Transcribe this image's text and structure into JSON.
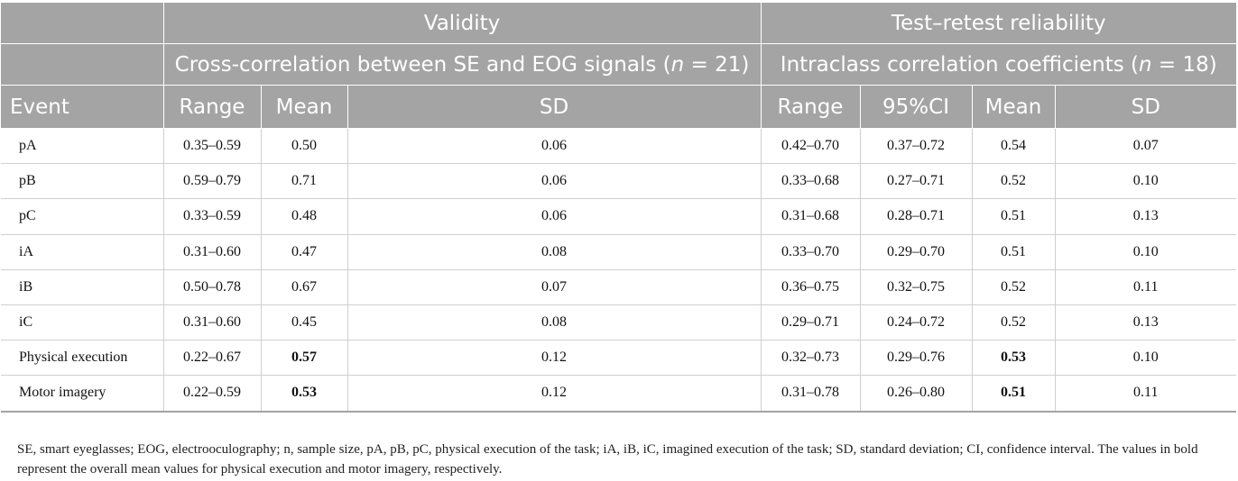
{
  "header": {
    "validity": "Validity",
    "reliability": "Test–retest reliability",
    "validity_sub_prefix": "Cross-correlation between SE and EOG signals (",
    "validity_sub_n": "n",
    "validity_sub_suffix": " = 21)",
    "reliability_sub_prefix": "Intraclass correlation coefficients (",
    "reliability_sub_n": "n",
    "reliability_sub_suffix": " = 18)",
    "columns": [
      "Event",
      "Range",
      "Mean",
      "SD",
      "Range",
      "95%CI",
      "Mean",
      "SD"
    ]
  },
  "rows": [
    {
      "event": "pA",
      "v_range": "0.35–0.59",
      "v_mean": "0.50",
      "v_sd": "0.06",
      "r_range": "0.42–0.70",
      "r_ci": "0.37–0.72",
      "r_mean": "0.54",
      "r_sd": "0.07"
    },
    {
      "event": "pB",
      "v_range": "0.59–0.79",
      "v_mean": "0.71",
      "v_sd": "0.06",
      "r_range": "0.33–0.68",
      "r_ci": "0.27–0.71",
      "r_mean": "0.52",
      "r_sd": "0.10"
    },
    {
      "event": "pC",
      "v_range": "0.33–0.59",
      "v_mean": "0.48",
      "v_sd": "0.06",
      "r_range": "0.31–0.68",
      "r_ci": "0.28–0.71",
      "r_mean": "0.51",
      "r_sd": "0.13"
    },
    {
      "event": "iA",
      "v_range": "0.31–0.60",
      "v_mean": "0.47",
      "v_sd": "0.08",
      "r_range": "0.33–0.70",
      "r_ci": "0.29–0.70",
      "r_mean": "0.51",
      "r_sd": "0.10"
    },
    {
      "event": "iB",
      "v_range": "0.50–0.78",
      "v_mean": "0.67",
      "v_sd": "0.07",
      "r_range": "0.36–0.75",
      "r_ci": "0.32–0.75",
      "r_mean": "0.52",
      "r_sd": "0.11"
    },
    {
      "event": "iC",
      "v_range": "0.31–0.60",
      "v_mean": "0.45",
      "v_sd": "0.08",
      "r_range": "0.29–0.71",
      "r_ci": "0.24–0.72",
      "r_mean": "0.52",
      "r_sd": "0.13"
    },
    {
      "event": "Physical execution",
      "v_range": "0.22–0.67",
      "v_mean": "0.57",
      "v_sd": "0.12",
      "r_range": "0.32–0.73",
      "r_ci": "0.29–0.76",
      "r_mean": "0.53",
      "r_sd": "0.10"
    },
    {
      "event": "Motor imagery",
      "v_range": "0.22–0.59",
      "v_mean": "0.53",
      "v_sd": "0.12",
      "r_range": "0.31–0.78",
      "r_ci": "0.26–0.80",
      "r_mean": "0.51",
      "r_sd": "0.11"
    }
  ],
  "footnote": "SE, smart eyeglasses; EOG, electrooculography; n, sample size, pA, pB, pC, physical execution of the task; iA, iB, iC, imagined execution of the task; SD, standard deviation; CI, confidence interval. The values in bold represent the overall mean values for physical execution and motor imagery, respectively."
}
